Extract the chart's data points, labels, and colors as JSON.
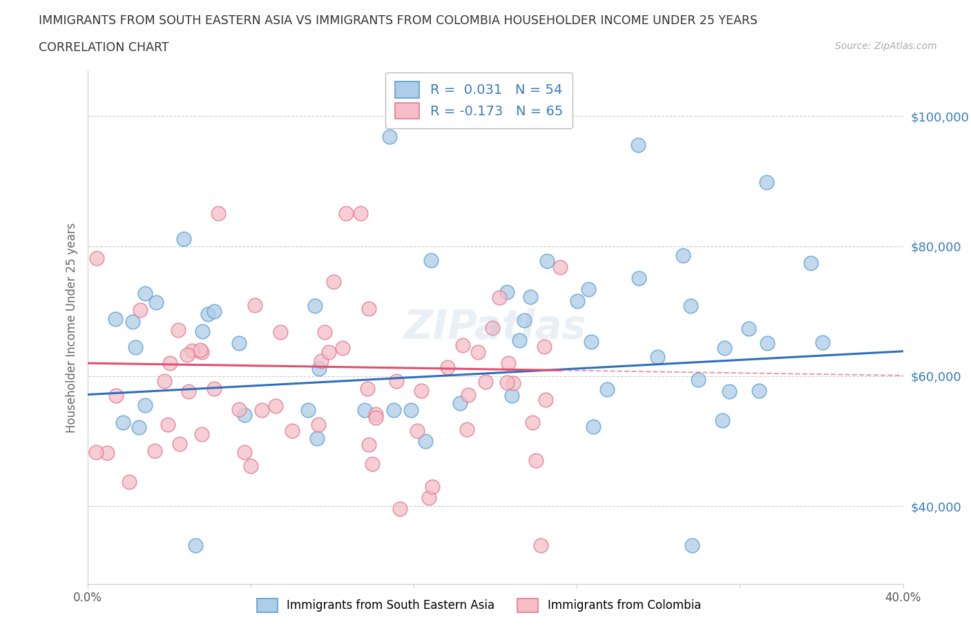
{
  "title_line1": "IMMIGRANTS FROM SOUTH EASTERN ASIA VS IMMIGRANTS FROM COLOMBIA HOUSEHOLDER INCOME UNDER 25 YEARS",
  "title_line2": "CORRELATION CHART",
  "source": "Source: ZipAtlas.com",
  "ylabel": "Householder Income Under 25 years",
  "xlim": [
    0.0,
    0.4
  ],
  "ylim": [
    28000,
    107000
  ],
  "yticks": [
    40000,
    60000,
    80000,
    100000
  ],
  "ytick_labels": [
    "$40,000",
    "$60,000",
    "$80,000",
    "$100,000"
  ],
  "blue_R": 0.031,
  "blue_N": 54,
  "pink_R": -0.173,
  "pink_N": 65,
  "blue_color": "#aecde8",
  "blue_edge": "#5a9fd4",
  "blue_line": "#2e6fbd",
  "pink_color": "#f5bec8",
  "pink_edge": "#e07a90",
  "pink_line": "#e05070",
  "blue_label": "Immigrants from South Eastern Asia",
  "pink_label": "Immigrants from Colombia",
  "watermark": "ZIPatlas",
  "background_color": "#ffffff",
  "grid_color": "#cccccc"
}
